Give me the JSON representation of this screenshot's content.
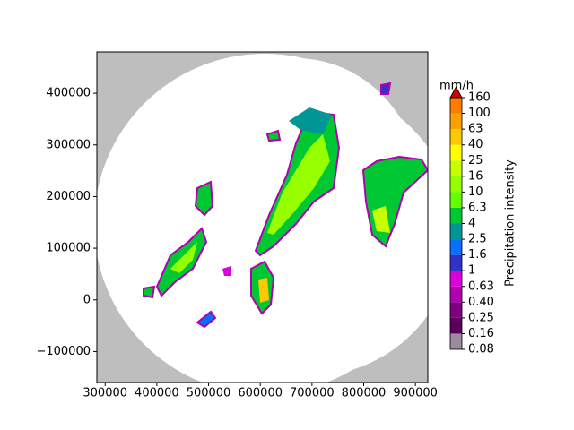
{
  "chart_data": {
    "type": "radar_map",
    "xlim": [
      284000,
      924000
    ],
    "ylim": [
      -160000,
      480000
    ],
    "xticks": [
      300000,
      400000,
      500000,
      600000,
      700000,
      800000,
      900000
    ],
    "yticks": [
      {
        "value": -100000,
        "label": "−100000"
      },
      0,
      100000,
      200000,
      300000,
      400000
    ],
    "colorbar": {
      "label": "Precipitation intensity",
      "unit": "mm/h",
      "levels": [
        0.08,
        0.16,
        0.25,
        {
          "value": 0.4,
          "label": "0.40"
        },
        0.63,
        1,
        1.6,
        2.5,
        4,
        6.3,
        10,
        16,
        25,
        40,
        63,
        100,
        160
      ],
      "colors": [
        "#9c8a9e",
        "#5a005a",
        "#7e007e",
        "#b000b0",
        "#dc00dc",
        "#3232c8",
        "#0a6eff",
        "#009696",
        "#00c832",
        "#64ff00",
        "#96ff00",
        "#c8ff00",
        "#ffff00",
        "#ffc800",
        "#ffa000",
        "#ff7d00"
      ],
      "over_color": "#d20000"
    }
  }
}
